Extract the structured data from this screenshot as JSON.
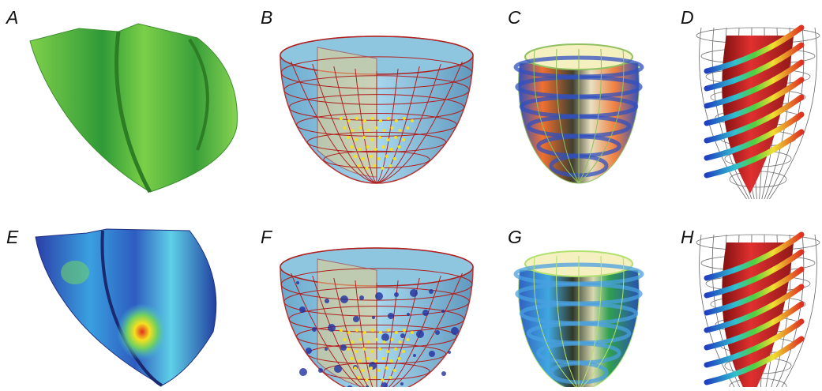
{
  "panels": [
    {
      "label": "A"
    },
    {
      "label": "B"
    },
    {
      "label": "C"
    },
    {
      "label": "D"
    },
    {
      "label": "E"
    },
    {
      "label": "F"
    },
    {
      "label": "G"
    },
    {
      "label": "H"
    }
  ]
}
